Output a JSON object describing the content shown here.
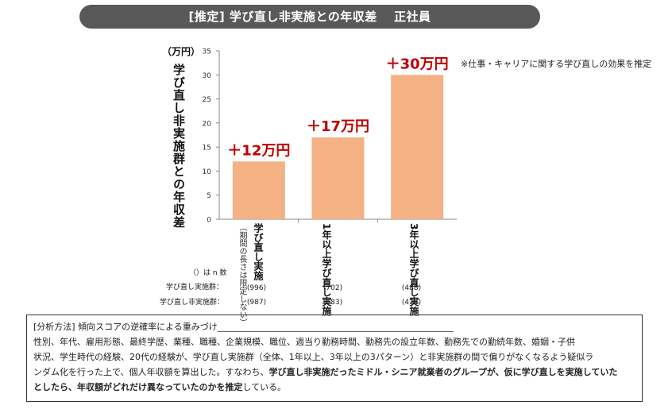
{
  "header": {
    "title": "[推定]  学び直し非実施との年収差　 正社員"
  },
  "chart_data": {
    "type": "bar",
    "categories": [
      "学び直し実施",
      "1年以上 学び直し実施",
      "3年以上 学び直し実施"
    ],
    "category_lines": [
      {
        "main": "学び直し実施",
        "sub": "（期間の長さは限定しない）"
      },
      {
        "main": "1年以上学び直し実施",
        "sub": ""
      },
      {
        "main": "3年以上学び直し実施",
        "sub": ""
      }
    ],
    "values": [
      12,
      17,
      30
    ],
    "data_labels": [
      "＋12万円",
      "＋17万円",
      "＋30万円"
    ],
    "ylabel": "学び直し非実施群との年収差",
    "yunit": "（万円）",
    "ylim": [
      0,
      35
    ],
    "yticks": [
      0,
      5,
      10,
      15,
      20,
      25,
      30,
      35
    ],
    "bar_color": "#f4b183",
    "label_color": "#c00000",
    "grid": false
  },
  "note": "※仕事・キャリアに関する学び直しの効果を推定",
  "n_table": {
    "caption": "（）は n 数",
    "row1_label": "学び直し実施群：",
    "row2_label": "学び直し非実施群：",
    "row1_values": [
      "(996)",
      "(702)",
      "(488)"
    ],
    "row2_values": [
      "(987)",
      "(683)",
      "(474)"
    ]
  },
  "method": {
    "heading": "[分析方法]  傾向スコアの逆確率による重みづけ",
    "line1": "性別、年代、雇用形態、最終学歴、業種、職種、企業規模、職位、週当り勤務時間、勤務先の設立年数、勤務先での勤続年数、婚姻・子供",
    "line2": "状況、学生時代の経験、20代の経験が、学び直し実施群（全体、1年以上、3年以上の3パターン）と非実施群の間で偏りがなくなるよう疑似ラ",
    "line3_plain": "ンダム化を行った上で、個人年収額を算出した。すなわち、",
    "line3_bold": "学び直し非実施だったミドル・シニア就業者のグループが、仮に学び直しを実施していた",
    "line4_bold": "としたら、年収額がどれだけ異なっていたのかを推定",
    "line4_plain": "している。"
  }
}
